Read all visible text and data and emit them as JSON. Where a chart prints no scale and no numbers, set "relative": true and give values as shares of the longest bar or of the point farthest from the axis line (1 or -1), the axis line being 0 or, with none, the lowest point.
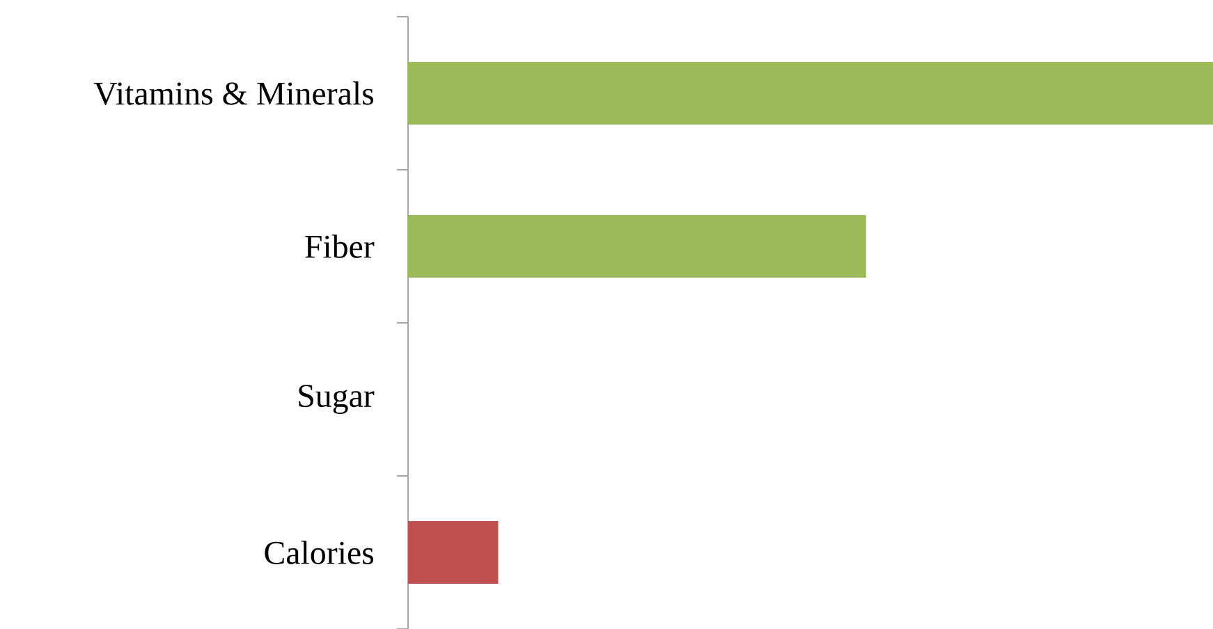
{
  "chart_data": {
    "type": "bar",
    "orientation": "horizontal",
    "relative": true,
    "categories": [
      "Vitamins & Minerals",
      "Fiber",
      "Sugar",
      "Calories"
    ],
    "values": [
      1,
      0.569,
      0,
      0.112
    ],
    "colors": [
      "#9bbb59",
      "#9bbb59",
      "#9bbb59",
      "#c0504d"
    ]
  }
}
